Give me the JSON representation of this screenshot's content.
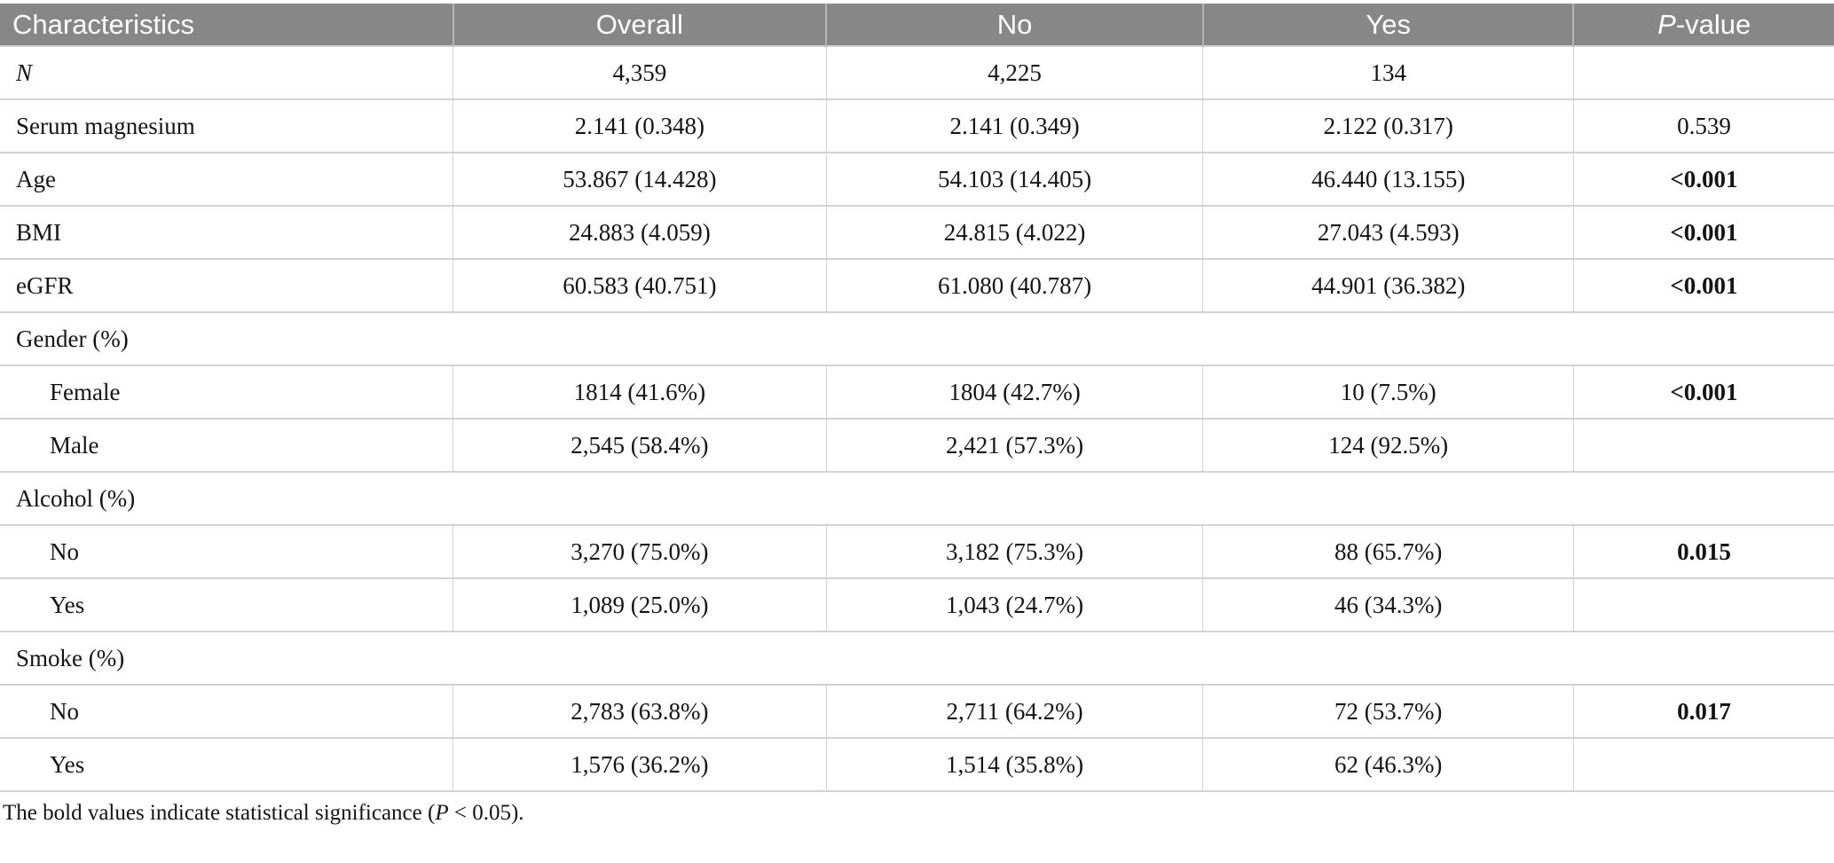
{
  "colors": {
    "header_bg": "#878787",
    "header_text": "#ffffff",
    "header_divider": "#b4b4b4",
    "grid_line": "#d2d2d2",
    "body_text": "#141414"
  },
  "table": {
    "columns": [
      {
        "label": "Characteristics",
        "italic_first": false
      },
      {
        "label": "Overall",
        "italic_first": false
      },
      {
        "label": "No",
        "italic_first": false
      },
      {
        "label": "Yes",
        "italic_first": false
      },
      {
        "label": "P-value",
        "italic_first": true
      }
    ],
    "rows": [
      {
        "type": "data",
        "label": "N",
        "label_italic": true,
        "indent": false,
        "overall": "4,359",
        "no": "4,225",
        "yes": "134",
        "p": "",
        "p_bold": false
      },
      {
        "type": "data",
        "label": "Serum magnesium",
        "label_italic": false,
        "indent": false,
        "overall": "2.141 (0.348)",
        "no": "2.141 (0.349)",
        "yes": "2.122 (0.317)",
        "p": "0.539",
        "p_bold": false
      },
      {
        "type": "data",
        "label": "Age",
        "label_italic": false,
        "indent": false,
        "overall": "53.867 (14.428)",
        "no": "54.103 (14.405)",
        "yes": "46.440 (13.155)",
        "p": "<0.001",
        "p_bold": true
      },
      {
        "type": "data",
        "label": "BMI",
        "label_italic": false,
        "indent": false,
        "overall": "24.883 (4.059)",
        "no": "24.815 (4.022)",
        "yes": "27.043 (4.593)",
        "p": "<0.001",
        "p_bold": true
      },
      {
        "type": "data",
        "label": "eGFR",
        "label_italic": false,
        "indent": false,
        "overall": "60.583 (40.751)",
        "no": "61.080 (40.787)",
        "yes": "44.901 (36.382)",
        "p": "<0.001",
        "p_bold": true
      },
      {
        "type": "section",
        "label": "Gender (%)"
      },
      {
        "type": "data",
        "label": "Female",
        "label_italic": false,
        "indent": true,
        "overall": "1814 (41.6%)",
        "no": "1804 (42.7%)",
        "yes": "10 (7.5%)",
        "p": "<0.001",
        "p_bold": true
      },
      {
        "type": "data",
        "label": "Male",
        "label_italic": false,
        "indent": true,
        "overall": "2,545 (58.4%)",
        "no": "2,421 (57.3%)",
        "yes": "124 (92.5%)",
        "p": "",
        "p_bold": false
      },
      {
        "type": "section",
        "label": "Alcohol (%)"
      },
      {
        "type": "data",
        "label": "No",
        "label_italic": false,
        "indent": true,
        "overall": "3,270 (75.0%)",
        "no": "3,182 (75.3%)",
        "yes": "88 (65.7%)",
        "p": "0.015",
        "p_bold": true
      },
      {
        "type": "data",
        "label": "Yes",
        "label_italic": false,
        "indent": true,
        "overall": "1,089 (25.0%)",
        "no": "1,043 (24.7%)",
        "yes": "46 (34.3%)",
        "p": "",
        "p_bold": false
      },
      {
        "type": "section",
        "label": "Smoke (%)"
      },
      {
        "type": "data",
        "label": "No",
        "label_italic": false,
        "indent": true,
        "overall": "2,783 (63.8%)",
        "no": "2,711 (64.2%)",
        "yes": "72 (53.7%)",
        "p": "0.017",
        "p_bold": true
      },
      {
        "type": "data",
        "label": "Yes",
        "label_italic": false,
        "indent": true,
        "overall": "1,576 (36.2%)",
        "no": "1,514 (35.8%)",
        "yes": "62 (46.3%)",
        "p": "",
        "p_bold": false
      }
    ],
    "footnote": {
      "pre": "The bold values indicate statistical significance (",
      "italic": "P",
      "post": " < 0.05)."
    }
  }
}
